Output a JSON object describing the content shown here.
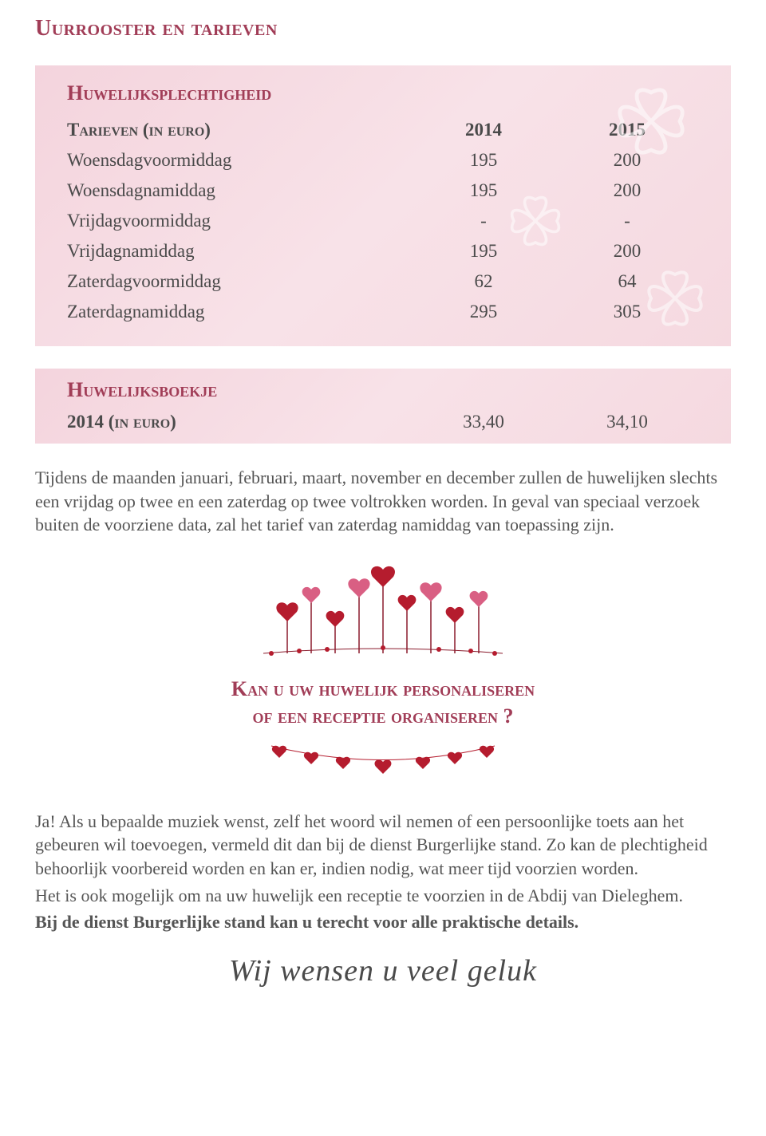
{
  "colors": {
    "accent": "#a13d57",
    "body_text": "#555555",
    "panel_bg_from": "#f4d4dd",
    "panel_bg_to": "#f5d9e0",
    "heart_red": "#b51c2e",
    "heart_pink": "#d95f83",
    "flower_white": "#ffffff"
  },
  "typography": {
    "title_fontsize": 28,
    "sub_title_fontsize": 26,
    "table_fontsize": 23,
    "body_fontsize": 22,
    "wish_fontsize": 38
  },
  "title": "Uurrooster en tarieven",
  "panel1": {
    "heading": "Huwelijksplechtigheid",
    "header_label": "Tarieven (in euro)",
    "year1": "2014",
    "year2": "2015",
    "rows": [
      {
        "label": "Woensdagvoormiddag",
        "v1": "195",
        "v2": "200"
      },
      {
        "label": "Woensdagnamiddag",
        "v1": "195",
        "v2": "200"
      },
      {
        "label": "Vrijdagvoormiddag",
        "v1": "-",
        "v2": "-"
      },
      {
        "label": "Vrijdagnamiddag",
        "v1": "195",
        "v2": "200"
      },
      {
        "label": "Zaterdagvoormiddag",
        "v1": "62",
        "v2": "64"
      },
      {
        "label": "Zaterdagnamiddag",
        "v1": "295",
        "v2": "305"
      }
    ]
  },
  "panel2": {
    "heading": "Huwelijksboekje",
    "label": "2014 (in euro)",
    "v1": "33,40",
    "v2": "34,10"
  },
  "paragraph1": "Tijdens de maanden januari, februari, maart, november en december zullen de huwelijken slechts een vrijdag op twee en een zaterdag op twee voltrokken worden. In geval van speciaal verzoek buiten de voorziene data, zal het tarief van zaterdag namiddag van toepassing zijn.",
  "center_title_line1": "Kan u uw huwelijk personaliseren",
  "center_title_line2": "of een receptie organiseren ?",
  "paragraph2": "Ja! Als u bepaalde muziek wenst, zelf het woord wil nemen of een persoonlijke toets aan het gebeuren wil toevoegen, vermeld dit dan bij de dienst Burgerlijke stand. Zo kan de plechtigheid behoorlijk voorbereid worden en kan er, indien nodig, wat meer tijd voorzien worden.",
  "paragraph3": "Het is ook mogelijk om na uw huwelijk een receptie te voorzien in de Abdij van Dieleghem.",
  "paragraph4": "Bij de dienst Burgerlijke stand kan u terecht voor alle praktische details.",
  "wish": "Wij wensen u veel geluk"
}
